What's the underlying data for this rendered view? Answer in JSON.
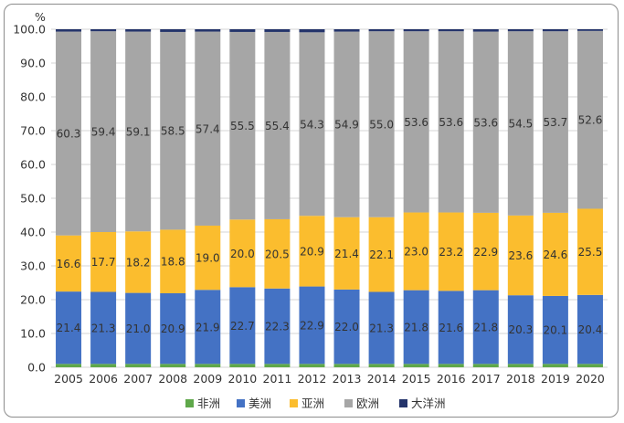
{
  "chart_data": {
    "type": "bar",
    "stacked": true,
    "unit": "%",
    "ylim": [
      0,
      100
    ],
    "yticks": [
      "0.0",
      "10.0",
      "20.0",
      "30.0",
      "40.0",
      "50.0",
      "60.0",
      "70.0",
      "80.0",
      "90.0",
      "100.0"
    ],
    "grid": true,
    "legend_position": "bottom",
    "categories": [
      "2005",
      "2006",
      "2007",
      "2008",
      "2009",
      "2010",
      "2011",
      "2012",
      "2013",
      "2014",
      "2015",
      "2016",
      "2017",
      "2018",
      "2019",
      "2020"
    ],
    "series": [
      {
        "name": "非洲",
        "color": "#5fa84a",
        "values": [
          1.0,
          1.0,
          1.0,
          1.0,
          1.0,
          1.0,
          1.0,
          1.0,
          1.0,
          1.0,
          1.0,
          1.0,
          1.0,
          1.0,
          1.0,
          1.0
        ],
        "labels_shown": false
      },
      {
        "name": "美洲",
        "color": "#4472c4",
        "values": [
          21.4,
          21.3,
          21.0,
          20.9,
          21.9,
          22.7,
          22.3,
          22.9,
          22.0,
          21.3,
          21.8,
          21.6,
          21.8,
          20.3,
          20.1,
          20.4
        ],
        "labels_shown": true
      },
      {
        "name": "亚洲",
        "color": "#fbbd2e",
        "values": [
          16.6,
          17.7,
          18.2,
          18.8,
          19.0,
          20.0,
          20.5,
          20.9,
          21.4,
          22.1,
          23.0,
          23.2,
          22.9,
          23.6,
          24.6,
          25.5
        ],
        "labels_shown": true
      },
      {
        "name": "欧洲",
        "color": "#a6a6a6",
        "values": [
          60.3,
          59.4,
          59.1,
          58.5,
          57.4,
          55.5,
          55.4,
          54.3,
          54.9,
          55.0,
          53.6,
          53.6,
          53.6,
          54.5,
          53.7,
          52.6
        ],
        "labels_shown": true
      },
      {
        "name": "大洋洲",
        "color": "#24346b",
        "values": [
          0.7,
          0.6,
          0.7,
          0.8,
          0.7,
          0.8,
          0.8,
          0.9,
          0.7,
          0.6,
          0.6,
          0.6,
          0.7,
          0.6,
          0.6,
          0.5
        ],
        "labels_shown": false
      }
    ]
  }
}
